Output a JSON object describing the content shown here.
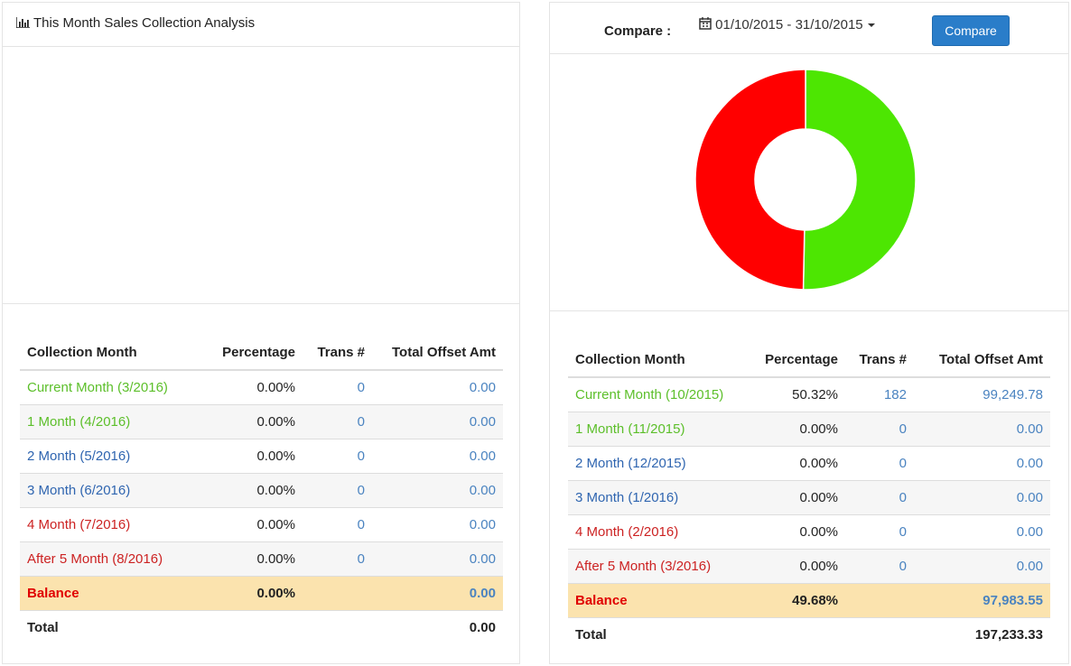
{
  "left_panel": {
    "title": "This Month Sales Collection Analysis",
    "table": {
      "columns": [
        "Collection Month",
        "Percentage",
        "Trans #",
        "Total Offset Amt"
      ],
      "rows": [
        [
          "Current Month (3/2016)",
          "0.00%",
          "0",
          "0.00"
        ],
        [
          "1 Month (4/2016)",
          "0.00%",
          "0",
          "0.00"
        ],
        [
          "2 Month (5/2016)",
          "0.00%",
          "0",
          "0.00"
        ],
        [
          "3 Month (6/2016)",
          "0.00%",
          "0",
          "0.00"
        ],
        [
          "4 Month (7/2016)",
          "0.00%",
          "0",
          "0.00"
        ],
        [
          "After 5 Month (8/2016)",
          "0.00%",
          "0",
          "0.00"
        ]
      ],
      "balance": {
        "label": "Balance",
        "percentage": "0.00%",
        "amount": "0.00"
      },
      "total": {
        "label": "Total",
        "amount": "0.00"
      }
    }
  },
  "right_panel": {
    "compare_label": "Compare :",
    "date_range": "01/10/2015 - 31/10/2015",
    "button": "Compare",
    "donut": {
      "values": [
        50.32,
        49.68
      ],
      "colors": [
        "#4de602",
        "#ff0000"
      ]
    },
    "table": {
      "columns": [
        "Collection Month",
        "Percentage",
        "Trans #",
        "Total Offset Amt"
      ],
      "rows": [
        [
          "Current Month (10/2015)",
          "50.32%",
          "182",
          "99,249.78"
        ],
        [
          "1 Month (11/2015)",
          "0.00%",
          "0",
          "0.00"
        ],
        [
          "2 Month (12/2015)",
          "0.00%",
          "0",
          "0.00"
        ],
        [
          "3 Month (1/2016)",
          "0.00%",
          "0",
          "0.00"
        ],
        [
          "4 Month (2/2016)",
          "0.00%",
          "0",
          "0.00"
        ],
        [
          "After 5 Month (3/2016)",
          "0.00%",
          "0",
          "0.00"
        ]
      ],
      "balance": {
        "label": "Balance",
        "percentage": "49.68%",
        "amount": "97,983.55"
      },
      "total": {
        "label": "Total",
        "amount": "197,233.33"
      }
    }
  }
}
